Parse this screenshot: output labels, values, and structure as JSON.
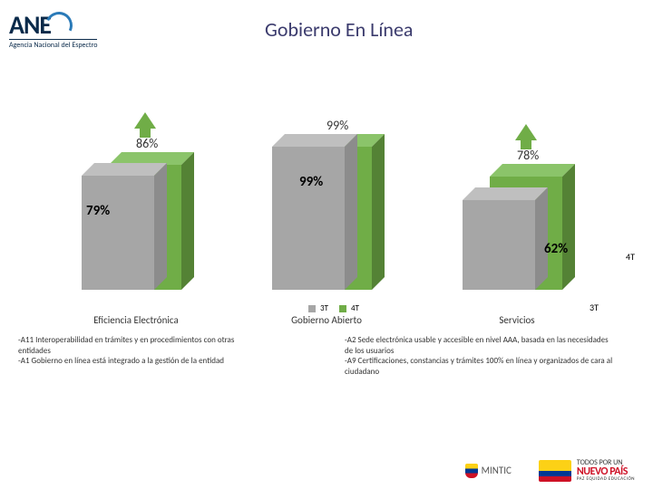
{
  "logo": {
    "text": "ANE",
    "subtitle": "Agencia Nacional del Espectro"
  },
  "title": "Gobierno En Línea",
  "chart": {
    "type": "bar",
    "series_3t_color": "#a6a6a6",
    "series_3t_top": "#bfbfbf",
    "series_3t_side": "#8c8c8c",
    "series_4t_color": "#70ad47",
    "series_4t_top": "#8bc46a",
    "series_4t_side": "#548235",
    "arrow_color": "#70ad47",
    "background": "#ffffff",
    "groups": [
      {
        "label": "Eficiencia Electrónica",
        "top_percent": "86%",
        "mid_percent": "79%",
        "val_3t": 79,
        "val_4t": 86,
        "show_arrow": true
      },
      {
        "label": "Gobierno Abierto",
        "top_percent": "99%",
        "mid_percent": "99%",
        "val_3t": 99,
        "val_4t": 99,
        "show_arrow": false
      },
      {
        "label": "Servicios",
        "top_percent": "78%",
        "mid_percent": "62%",
        "val_3t": 62,
        "val_4t": 78,
        "show_arrow": true
      }
    ],
    "legend": {
      "s3t": "3T",
      "s4t": "4T",
      "sq3t_color": "#a6a6a6",
      "sq4t_color": "#70ad47"
    }
  },
  "notes": {
    "left": "-A11 Interoperabilidad en trámites y en procedimientos con otras entidades\n-A1 Gobierno en línea está integrado a la gestión de la entidad",
    "right": "-A2 Sede electrónica usable y accesible en nivel AAA, basada en las necesidades de los usuarios\n-A9 Certificaciones, constancias y trámites 100% en línea y organizados de cara al ciudadano"
  },
  "footer": {
    "mintic": "MINTIC",
    "np_line1": "TODOS POR UN",
    "np_line2": "NUEVO PAÍS",
    "np_sub": "PAZ  EQUIDAD  EDUCACIÓN"
  }
}
